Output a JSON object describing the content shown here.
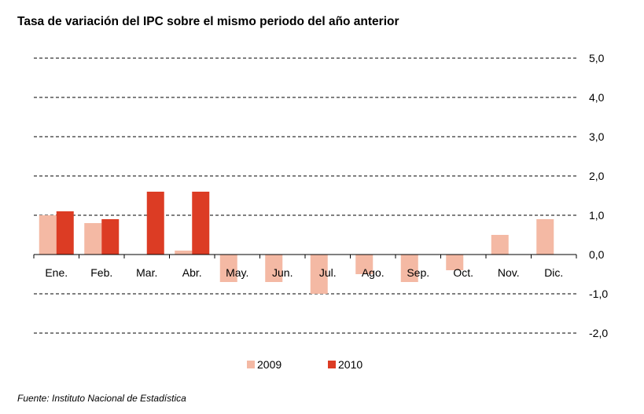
{
  "title": "Tasa de variación del IPC sobre el mismo periodo del año anterior",
  "source": "Fuente: Instituto Nacional de Estadística",
  "colors": {
    "s2009": "#f4b9a4",
    "s2010": "#dc3c24",
    "grid": "#000000"
  },
  "chart_data": {
    "type": "bar",
    "categories": [
      "Ene.",
      "Feb.",
      "Mar.",
      "Abr.",
      "May.",
      "Jun.",
      "Jul.",
      "Ago.",
      "Sep.",
      "Oct.",
      "Nov.",
      "Dic."
    ],
    "series": [
      {
        "name": "2009",
        "values": [
          1.0,
          0.8,
          0.0,
          0.1,
          -0.7,
          -0.7,
          -1.0,
          -0.5,
          -0.7,
          -0.4,
          0.5,
          0.9
        ]
      },
      {
        "name": "2010",
        "values": [
          1.1,
          0.9,
          1.6,
          1.6,
          null,
          null,
          null,
          null,
          null,
          null,
          null,
          null
        ]
      }
    ],
    "ylim": [
      -2.0,
      5.0
    ],
    "yticks": [
      5.0,
      4.0,
      3.0,
      2.0,
      1.0,
      0.0,
      -1.0,
      -2.0
    ],
    "ytick_labels": [
      "5,0",
      "4,0",
      "3,0",
      "2,0",
      "1,0",
      "0,0",
      "-1,0",
      "-2,0"
    ],
    "grid": true,
    "legend_position": "bottom-center"
  }
}
